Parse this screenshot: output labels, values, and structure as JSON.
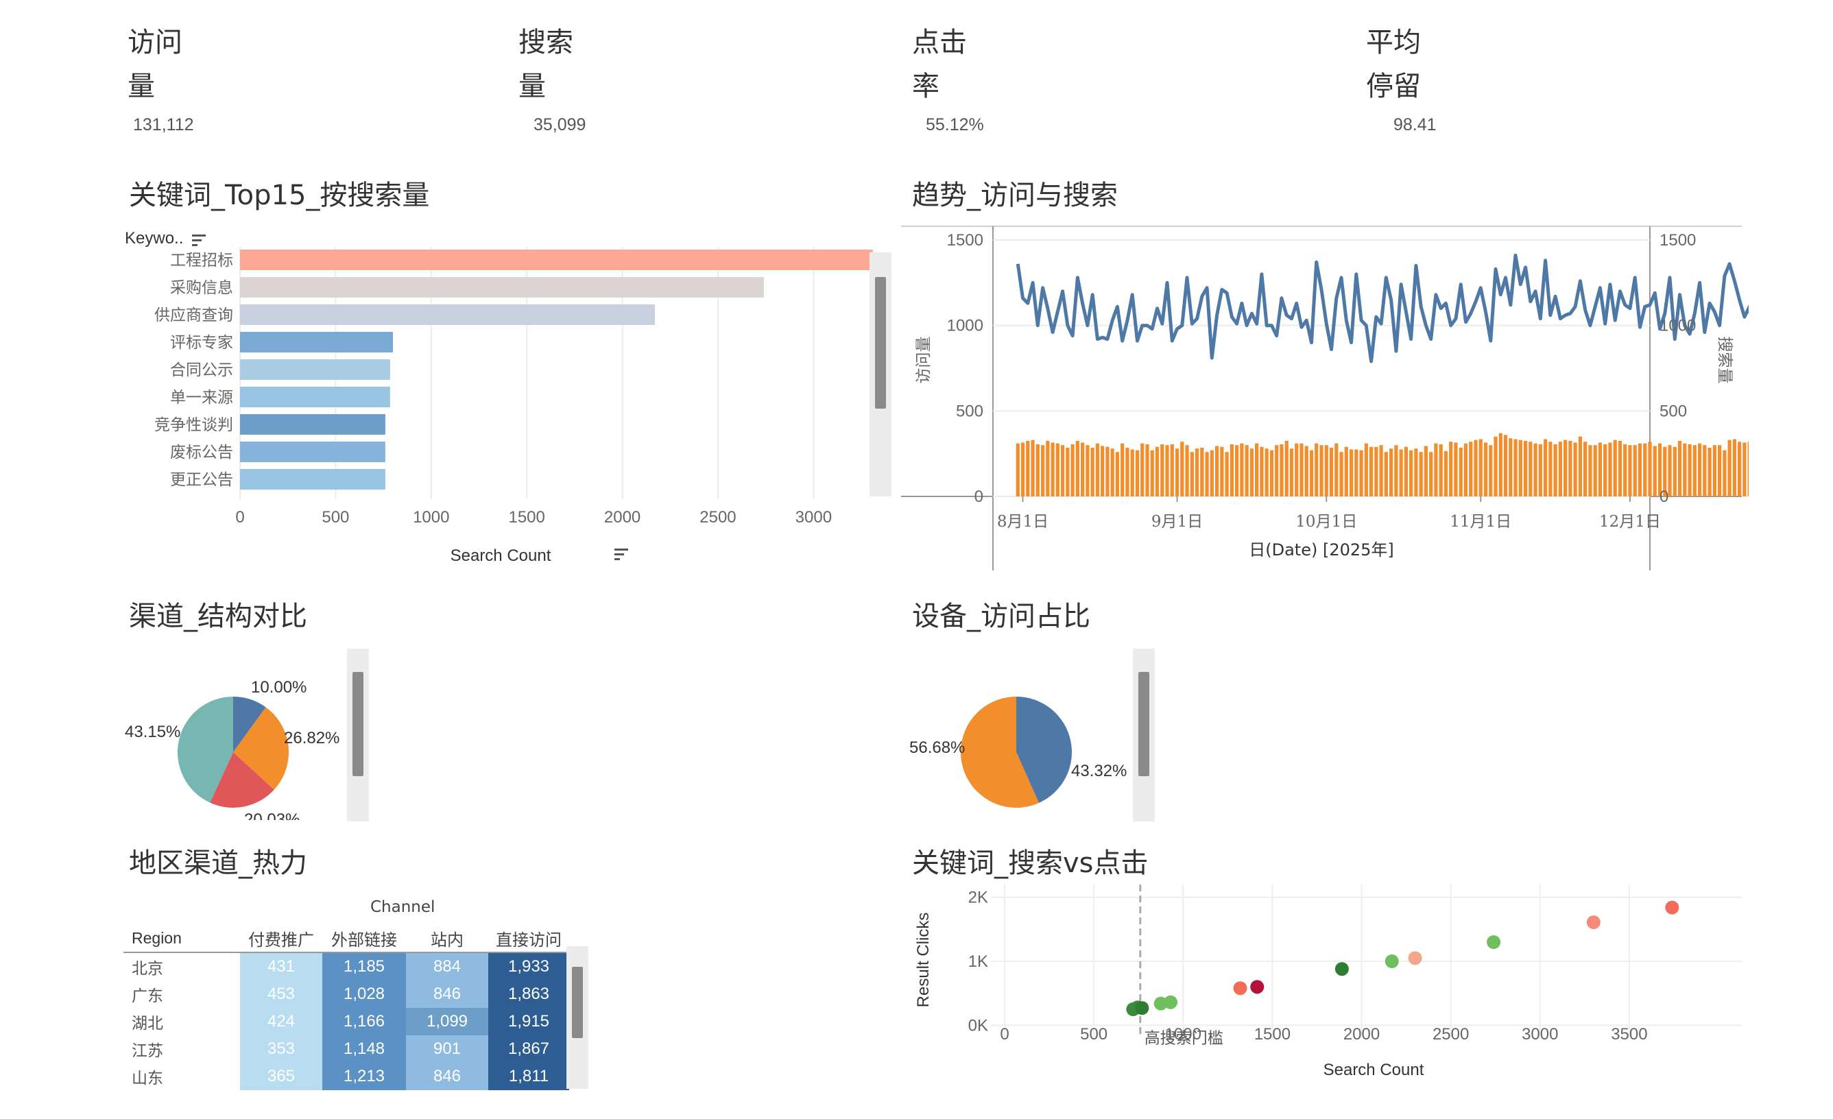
{
  "kpis": [
    {
      "label1": "访问",
      "label2": "量",
      "value": "131,112"
    },
    {
      "label1": "搜索",
      "label2": "量",
      "value": "35,099"
    },
    {
      "label1": "点击",
      "label2": "率",
      "value": "55.12%"
    },
    {
      "label1": "平均",
      "label2": "停留",
      "value": "98.41"
    }
  ],
  "titles": {
    "keywords": "关键词_Top15_按搜索量",
    "trend": "趋势_访问与搜索",
    "channel": "渠道_结构对比",
    "device": "设备_访问占比",
    "heatmap": "地区渠道_热力",
    "scatter": "关键词_搜索vs点击"
  },
  "colors": {
    "blue": "#4e79a7",
    "orange": "#f28e2b",
    "teal": "#76b7b2",
    "red": "#e15759",
    "salmon": "#ff9d7a"
  },
  "chart_data": [
    {
      "type": "bar",
      "orientation": "horizontal",
      "row_header": "Keywo..",
      "xlabel": "Search Count",
      "xlim": [
        0,
        3300
      ],
      "xticks": [
        "0",
        "500",
        "1000",
        "1500",
        "2000",
        "2500",
        "3000"
      ],
      "categories": [
        "工程招标",
        "采购信息",
        "供应商查询",
        "评标专家",
        "合同公示",
        "单一来源",
        "竞争性谈判",
        "废标公告",
        "更正公告"
      ],
      "values": [
        3310,
        2740,
        2170,
        800,
        785,
        785,
        760,
        760,
        760
      ],
      "colors": [
        "#fba895",
        "#dcd4d2",
        "#c6d1dd",
        "#7aaad4",
        "#a9cde4",
        "#98c4e3",
        "#6d9ec8",
        "#86b4dc",
        "#98c4e3"
      ]
    },
    {
      "type": "line",
      "x_label": "日(Date) [2025年]",
      "x_ticks": [
        "8月1日",
        "9月1日",
        "10月1日",
        "11月1日",
        "12月1日"
      ],
      "y_left_label": "访问量",
      "y_right_label": "搜索量",
      "y_ticks": [
        "1500",
        "1000",
        "500",
        "0"
      ],
      "ylim": [
        0,
        1500
      ],
      "x_range": [
        "2025-07-26",
        "2025-12-05"
      ],
      "series_start": "2025-07-31",
      "series": [
        {
          "type": "line",
          "color": "#4e79a7",
          "values": [
            1360,
            1160,
            1130,
            1250,
            1000,
            1220,
            1100,
            960,
            1080,
            1200,
            1000,
            940,
            1280,
            1130,
            1000,
            1180,
            920,
            930,
            920,
            1030,
            1110,
            910,
            1030,
            1180,
            910,
            1000,
            1000,
            980,
            1100,
            1010,
            1250,
            910,
            980,
            1000,
            1280,
            1010,
            1040,
            1170,
            1220,
            810,
            1060,
            1210,
            1190,
            1050,
            1010,
            1130,
            1000,
            1070,
            1010,
            1300,
            1000,
            1000,
            940,
            1160,
            1060,
            1040,
            1130,
            990,
            1030,
            900,
            1370,
            1210,
            1010,
            860,
            1160,
            1280,
            1030,
            900,
            1300,
            1030,
            1000,
            790,
            1050,
            1010,
            1280,
            1150,
            850,
            1240,
            1080,
            920,
            1350,
            1110,
            1000,
            920,
            1180,
            1100,
            1130,
            1000,
            1040,
            1240,
            1020,
            1070,
            1140,
            1220,
            1080,
            910,
            1330,
            1180,
            1280,
            1120,
            1410,
            1240,
            1340,
            1140,
            1200,
            1040,
            1380,
            1060,
            1170,
            1040,
            1060,
            1070,
            1110,
            1260,
            1090,
            1000,
            1110,
            1220,
            1010,
            1240,
            1030,
            1200,
            1120,
            1100,
            1280,
            990,
            1110,
            1120,
            1190,
            980,
            1070,
            1280,
            920,
            1180,
            1000,
            950,
            1070,
            1250,
            960,
            1130,
            1080,
            1000,
            1290,
            1360,
            1260,
            1150,
            1050,
            1110,
            850,
            1260,
            1050,
            1220,
            1060,
            1160,
            1260,
            880,
            1040,
            1130,
            1200,
            1110,
            1050,
            1020,
            850,
            1060,
            1010,
            1230,
            1210,
            1250,
            1030,
            1180,
            1050,
            1050,
            1210,
            1130,
            1180,
            1070,
            1120,
            860,
            1150,
            1220,
            1040
          ]
        },
        {
          "type": "bar",
          "color": "#f28e2b",
          "values": [
            310,
            315,
            325,
            330,
            305,
            300,
            325,
            315,
            310,
            300,
            285,
            305,
            325,
            315,
            300,
            285,
            310,
            295,
            290,
            280,
            260,
            310,
            285,
            275,
            270,
            310,
            305,
            270,
            290,
            305,
            300,
            305,
            280,
            320,
            300,
            260,
            280,
            285,
            260,
            270,
            295,
            290,
            260,
            305,
            300,
            310,
            300,
            280,
            310,
            290,
            280,
            270,
            300,
            305,
            325,
            280,
            310,
            310,
            295,
            270,
            310,
            300,
            300,
            285,
            310,
            260,
            290,
            275,
            275,
            270,
            310,
            290,
            290,
            300,
            260,
            280,
            300,
            275,
            290,
            270,
            280,
            260,
            295,
            260,
            310,
            305,
            265,
            320,
            315,
            285,
            310,
            320,
            330,
            335,
            315,
            300,
            350,
            370,
            360,
            340,
            335,
            330,
            325,
            320,
            310,
            305,
            335,
            320,
            305,
            320,
            330,
            325,
            315,
            350,
            320,
            300,
            300,
            315,
            305,
            315,
            330,
            325,
            305,
            300,
            300,
            310,
            310,
            320,
            295,
            310,
            290,
            300,
            290,
            325,
            310,
            305,
            300,
            310,
            300,
            285,
            300,
            300,
            270,
            330,
            335,
            320,
            315,
            320,
            305,
            305,
            300,
            305,
            330,
            310,
            305,
            295,
            310,
            300,
            300,
            295,
            300,
            290,
            300,
            300,
            290,
            280,
            285,
            280,
            300,
            275,
            290,
            290,
            300,
            290,
            285,
            285,
            270,
            280,
            260,
            275,
            275,
            270,
            275,
            270
          ]
        }
      ]
    },
    {
      "type": "pie",
      "title": "渠道_结构对比",
      "slices": [
        {
          "value": 10.0,
          "label": "10.00%",
          "color": "#4e79a7"
        },
        {
          "value": 26.82,
          "label": "26.82%",
          "color": "#f28e2b"
        },
        {
          "value": 20.03,
          "label": "20.03%",
          "color": "#e15759"
        },
        {
          "value": 43.15,
          "label": "43.15%",
          "color": "#76b7b2"
        }
      ]
    },
    {
      "type": "pie",
      "title": "设备_访问占比",
      "slices": [
        {
          "value": 43.32,
          "label": "43.32%",
          "color": "#4e79a7"
        },
        {
          "value": 56.68,
          "label": "56.68%",
          "color": "#f28e2b"
        }
      ]
    },
    {
      "type": "heatmap",
      "column_header": "Channel",
      "row_header": "Region",
      "columns": [
        "付费推广",
        "外部链接",
        "站内",
        "直接访问"
      ],
      "column_colors": [
        "#b8dcf0",
        "#5b91c5",
        "#8fbbe0",
        "#2d5d92"
      ],
      "rows": [
        {
          "region": "北京",
          "values": [
            "431",
            "1,185",
            "884",
            "1,933"
          ]
        },
        {
          "region": "广东",
          "values": [
            "453",
            "1,028",
            "846",
            "1,863"
          ]
        },
        {
          "region": "湖北",
          "values": [
            "424",
            "1,166",
            "1,099",
            "1,915"
          ]
        },
        {
          "region": "江苏",
          "values": [
            "353",
            "1,148",
            "901",
            "1,867"
          ]
        },
        {
          "region": "山东",
          "values": [
            "365",
            "1,213",
            "846",
            "1,811"
          ]
        }
      ]
    },
    {
      "type": "scatter",
      "xlabel": "Search Count",
      "ylabel": "Result Clicks",
      "xticks": [
        "0",
        "500",
        "1000",
        "1500",
        "2000",
        "2500",
        "3000",
        "3500"
      ],
      "yticks": [
        "2K",
        "1K",
        "0K"
      ],
      "xlim": [
        0,
        3900
      ],
      "ylim": [
        -200,
        2200
      ],
      "reference_line": {
        "x": 760,
        "label": "高搜索门槛"
      },
      "points": [
        {
          "x": 720,
          "y": 250,
          "color": "#3b8a3e"
        },
        {
          "x": 745,
          "y": 280,
          "color": "#3b8a3e"
        },
        {
          "x": 770,
          "y": 270,
          "color": "#2e7d32"
        },
        {
          "x": 875,
          "y": 340,
          "color": "#6fbf5f"
        },
        {
          "x": 930,
          "y": 360,
          "color": "#6fbf5f"
        },
        {
          "x": 1320,
          "y": 580,
          "color": "#f26b5b"
        },
        {
          "x": 1415,
          "y": 600,
          "color": "#b5123a"
        },
        {
          "x": 1890,
          "y": 880,
          "color": "#2e7d32"
        },
        {
          "x": 2170,
          "y": 1000,
          "color": "#6fbf5f"
        },
        {
          "x": 2300,
          "y": 1050,
          "color": "#f4a68c"
        },
        {
          "x": 2740,
          "y": 1300,
          "color": "#6fbf5f"
        },
        {
          "x": 3300,
          "y": 1610,
          "color": "#f48a78"
        },
        {
          "x": 3740,
          "y": 1840,
          "color": "#f26b5b"
        }
      ]
    }
  ]
}
